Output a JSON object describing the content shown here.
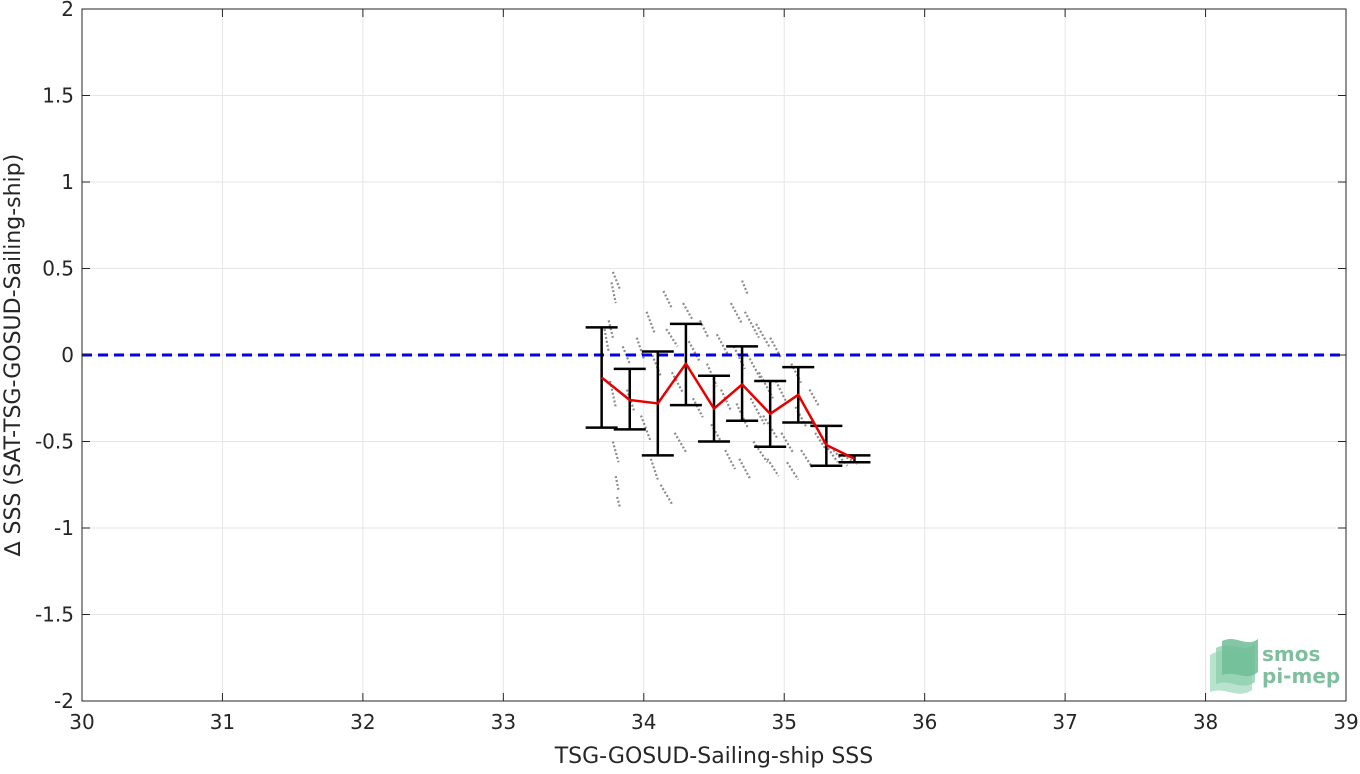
{
  "chart_data": {
    "type": "scatter",
    "title": "",
    "xlabel": "TSG-GOSUD-Sailing-ship SSS",
    "ylabel": "∆ SSS (SAT-TSG-GOSUD-Sailing-ship)",
    "xlim": [
      30,
      39
    ],
    "ylim": [
      -2,
      2
    ],
    "x_ticks": [
      "30",
      "31",
      "32",
      "33",
      "34",
      "35",
      "36",
      "37",
      "38",
      "39"
    ],
    "y_ticks": [
      "2",
      "1.5",
      "1",
      "0.5",
      "0",
      "-0.5",
      "-1",
      "-1.5",
      "-2"
    ],
    "grid": true,
    "legend": "none",
    "reference_line": {
      "y": 0,
      "color": "#0000e6",
      "style": "dashed"
    },
    "mean_series": {
      "color": "#e60000",
      "x": [
        33.7,
        33.9,
        34.1,
        34.3,
        34.5,
        34.7,
        34.9,
        35.1,
        35.3,
        35.5
      ],
      "y": [
        -0.13,
        -0.26,
        -0.28,
        -0.05,
        -0.31,
        -0.17,
        -0.34,
        -0.23,
        -0.52,
        -0.6
      ]
    },
    "error_bars": {
      "color": "#000000",
      "x": [
        33.7,
        33.9,
        34.1,
        34.3,
        34.5,
        34.7,
        34.9,
        35.1,
        35.3,
        35.5
      ],
      "upper": [
        0.16,
        -0.08,
        0.02,
        0.18,
        -0.12,
        0.05,
        -0.15,
        -0.07,
        -0.41,
        -0.58
      ],
      "lower": [
        -0.42,
        -0.43,
        -0.58,
        -0.29,
        -0.5,
        -0.38,
        -0.53,
        -0.39,
        -0.64,
        -0.62
      ]
    },
    "scatter_streaks": {
      "color": "#8c8c8c",
      "segments": [
        [
          33.78,
          0.48,
          33.83,
          0.38
        ],
        [
          33.77,
          0.42,
          33.8,
          0.3
        ],
        [
          33.75,
          0.2,
          33.78,
          0.1
        ],
        [
          33.72,
          0.15,
          33.75,
          0.02
        ],
        [
          33.76,
          -0.15,
          33.8,
          -0.3
        ],
        [
          33.78,
          -0.5,
          33.82,
          -0.62
        ],
        [
          33.8,
          -0.7,
          33.82,
          -0.78
        ],
        [
          33.81,
          -0.82,
          33.83,
          -0.88
        ],
        [
          33.85,
          0.05,
          33.9,
          -0.05
        ],
        [
          33.88,
          -0.2,
          33.93,
          -0.32
        ],
        [
          33.95,
          0.1,
          34.0,
          -0.02
        ],
        [
          33.98,
          -0.35,
          34.05,
          -0.5
        ],
        [
          34.02,
          0.25,
          34.08,
          0.12
        ],
        [
          34.06,
          0.0,
          34.12,
          -0.12
        ],
        [
          34.05,
          -0.6,
          34.1,
          -0.72
        ],
        [
          34.12,
          -0.75,
          34.2,
          -0.86
        ],
        [
          34.14,
          0.37,
          34.2,
          0.27
        ],
        [
          34.16,
          0.15,
          34.24,
          0.05
        ],
        [
          34.2,
          -0.1,
          34.28,
          -0.22
        ],
        [
          34.22,
          -0.45,
          34.3,
          -0.56
        ],
        [
          34.28,
          0.3,
          34.35,
          0.2
        ],
        [
          34.32,
          0.08,
          34.4,
          -0.04
        ],
        [
          34.35,
          -0.25,
          34.42,
          -0.36
        ],
        [
          34.4,
          0.2,
          34.46,
          0.1
        ],
        [
          34.45,
          -0.05,
          34.52,
          -0.18
        ],
        [
          34.48,
          -0.4,
          34.55,
          -0.5
        ],
        [
          34.52,
          0.12,
          34.6,
          0.0
        ],
        [
          34.55,
          -0.2,
          34.62,
          -0.32
        ],
        [
          34.58,
          -0.55,
          34.65,
          -0.66
        ],
        [
          34.62,
          0.3,
          34.7,
          0.18
        ],
        [
          34.64,
          0.05,
          34.72,
          -0.08
        ],
        [
          34.66,
          -0.28,
          34.74,
          -0.42
        ],
        [
          34.68,
          -0.6,
          34.76,
          -0.72
        ],
        [
          34.7,
          0.43,
          34.74,
          0.35
        ],
        [
          34.72,
          0.25,
          34.82,
          0.1
        ],
        [
          34.74,
          0.0,
          34.84,
          -0.15
        ],
        [
          34.76,
          -0.25,
          34.86,
          -0.4
        ],
        [
          34.78,
          -0.5,
          34.88,
          -0.62
        ],
        [
          34.8,
          0.18,
          34.9,
          0.04
        ],
        [
          34.82,
          -0.1,
          34.92,
          -0.25
        ],
        [
          34.85,
          -0.35,
          34.95,
          -0.48
        ],
        [
          34.88,
          -0.6,
          34.96,
          -0.7
        ],
        [
          34.9,
          0.1,
          34.98,
          -0.02
        ],
        [
          34.94,
          -0.15,
          35.02,
          -0.28
        ],
        [
          34.98,
          -0.45,
          35.06,
          -0.56
        ],
        [
          35.02,
          -0.62,
          35.1,
          -0.72
        ],
        [
          35.05,
          -0.05,
          35.12,
          -0.16
        ],
        [
          35.08,
          -0.3,
          35.16,
          -0.42
        ],
        [
          35.12,
          -0.55,
          35.2,
          -0.65
        ],
        [
          35.18,
          -0.2,
          35.25,
          -0.3
        ],
        [
          35.22,
          -0.45,
          35.3,
          -0.55
        ],
        [
          35.28,
          -0.5,
          35.38,
          -0.62
        ],
        [
          35.35,
          -0.55,
          35.45,
          -0.64
        ],
        [
          35.42,
          -0.58,
          35.52,
          -0.63
        ]
      ]
    }
  },
  "logo": {
    "line1": "smos",
    "line2": "pi-mep"
  },
  "colors": {
    "axis": "#262626",
    "grid": "#e6e6e6",
    "logo": "#7fbf9f"
  }
}
